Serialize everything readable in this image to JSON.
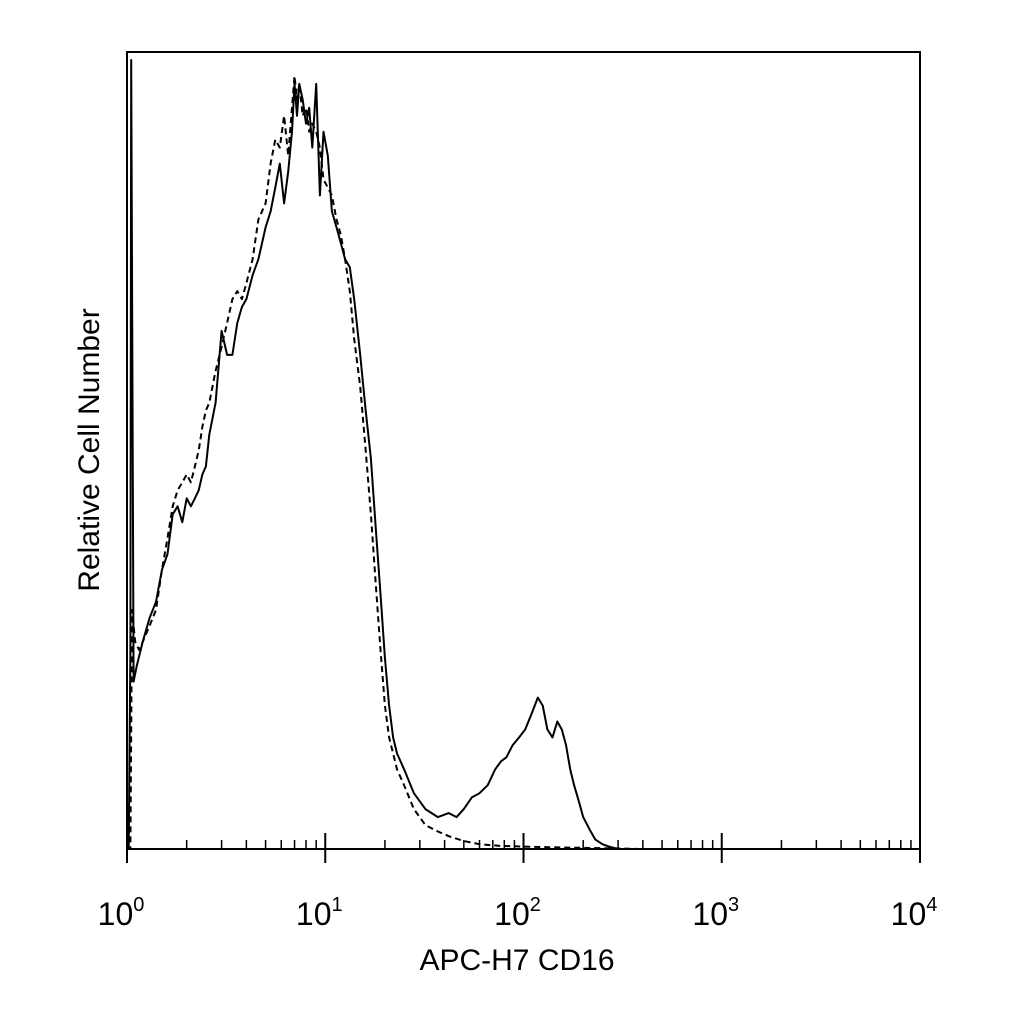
{
  "chart_data": {
    "type": "line",
    "title": "",
    "xlabel": "APC-H7 CD16",
    "ylabel": "Relative Cell Number",
    "x_scale": "log",
    "xlim": [
      1,
      10000
    ],
    "ylim": [
      0,
      100
    ],
    "grid": false,
    "x_ticks": [
      {
        "value": 1,
        "base": "10",
        "exp": "0"
      },
      {
        "value": 10,
        "base": "10",
        "exp": "1"
      },
      {
        "value": 100,
        "base": "10",
        "exp": "2"
      },
      {
        "value": 1000,
        "base": "10",
        "exp": "3"
      },
      {
        "value": 10000,
        "base": "10",
        "exp": "4"
      }
    ],
    "series": [
      {
        "style": "solid",
        "x": [
          1.0,
          1.02,
          1.04,
          1.05,
          1.08,
          1.12,
          1.2,
          1.3,
          1.4,
          1.5,
          1.6,
          1.7,
          1.8,
          1.9,
          2.0,
          2.1,
          2.2,
          2.3,
          2.4,
          2.5,
          2.6,
          2.8,
          3.0,
          3.2,
          3.4,
          3.6,
          3.8,
          4.0,
          4.3,
          4.6,
          5.0,
          5.3,
          5.6,
          5.9,
          6.2,
          6.5,
          6.8,
          7.0,
          7.2,
          7.4,
          7.7,
          8.0,
          8.3,
          8.6,
          9.0,
          9.4,
          9.8,
          10.3,
          10.8,
          11.4,
          12.0,
          12.6,
          13.3,
          14.0,
          15.0,
          16.0,
          17.0,
          18.0,
          19.0,
          20.0,
          21.0,
          22.0,
          23.0,
          25.0,
          28.0,
          32.0,
          37.0,
          42.0,
          46.0,
          50.0,
          55.0,
          60.0,
          66.0,
          72.0,
          77.0,
          82.0,
          88.0,
          95.0,
          102.0,
          110.0,
          118.0,
          125.0,
          132.0,
          140.0,
          148.0,
          156.0,
          164.0,
          172.0,
          180.0,
          190.0,
          200.0,
          215.0,
          230.0,
          250.0,
          270.0,
          290.0,
          310.0,
          330.0,
          350.0,
          380.0,
          450.0,
          600.0,
          800.0,
          1200.0,
          2000.0,
          4000.0,
          7000.0,
          10000.0
        ],
        "y": [
          0,
          0,
          25,
          99,
          21,
          23,
          26,
          29,
          31,
          35,
          37,
          42,
          43,
          41,
          44,
          43,
          44,
          45,
          47,
          48,
          52,
          56,
          65,
          62,
          62,
          66,
          68,
          69,
          72,
          74,
          78,
          80,
          83,
          86,
          81,
          85,
          90,
          96,
          92,
          96,
          94,
          91,
          93,
          88,
          96,
          82,
          90,
          87,
          80,
          78,
          76,
          74,
          73,
          69,
          62,
          55,
          49,
          40,
          32,
          24,
          18,
          14,
          12,
          10,
          7,
          5,
          4,
          4.5,
          4,
          5,
          6.5,
          7,
          8,
          10,
          11,
          11.5,
          13,
          14,
          15,
          17,
          19,
          18,
          15,
          14,
          16,
          15,
          13,
          10,
          8,
          6,
          4,
          2.5,
          1.2,
          0.6,
          0.3,
          0.1,
          0,
          0,
          0,
          0,
          0,
          0,
          0,
          0,
          0,
          0,
          0,
          0
        ]
      },
      {
        "style": "dashed",
        "x": [
          1.0,
          1.04,
          1.06,
          1.1,
          1.15,
          1.2,
          1.3,
          1.4,
          1.5,
          1.6,
          1.7,
          1.8,
          1.9,
          2.0,
          2.1,
          2.2,
          2.3,
          2.4,
          2.5,
          2.6,
          2.8,
          3.0,
          3.2,
          3.4,
          3.6,
          3.8,
          4.0,
          4.3,
          4.6,
          5.0,
          5.3,
          5.6,
          5.9,
          6.2,
          6.5,
          6.8,
          7.0,
          7.2,
          7.4,
          7.7,
          8.0,
          8.3,
          8.6,
          9.0,
          9.4,
          9.8,
          10.3,
          10.8,
          11.4,
          12.0,
          12.6,
          13.3,
          14.0,
          15.0,
          16.0,
          17.0,
          18.0,
          19.0,
          20.0,
          21.0,
          22.0,
          23.0,
          25.0,
          28.0,
          32.0,
          37.0,
          42.0,
          50.0,
          60.0,
          75.0,
          100.0,
          150.0,
          250.0,
          400.0,
          700.0,
          1500.0,
          4000.0,
          10000.0
        ],
        "y": [
          0,
          0,
          30,
          26,
          25,
          26,
          28,
          30,
          35,
          39,
          43,
          45,
          46,
          47,
          46,
          48,
          50,
          53,
          55,
          56,
          60,
          63,
          66,
          69,
          70,
          69,
          71,
          74,
          79,
          81,
          86,
          89,
          88,
          92,
          87,
          93,
          97,
          94,
          96,
          92,
          93,
          90,
          91,
          90,
          88,
          84,
          83,
          82,
          79,
          77,
          74,
          70,
          64,
          58,
          50,
          42,
          33,
          25,
          18,
          14,
          12,
          10,
          8,
          5,
          3,
          2.2,
          1.6,
          1.0,
          0.6,
          0.4,
          0.3,
          0.2,
          0.1,
          0,
          0,
          0,
          0,
          0
        ]
      }
    ]
  }
}
